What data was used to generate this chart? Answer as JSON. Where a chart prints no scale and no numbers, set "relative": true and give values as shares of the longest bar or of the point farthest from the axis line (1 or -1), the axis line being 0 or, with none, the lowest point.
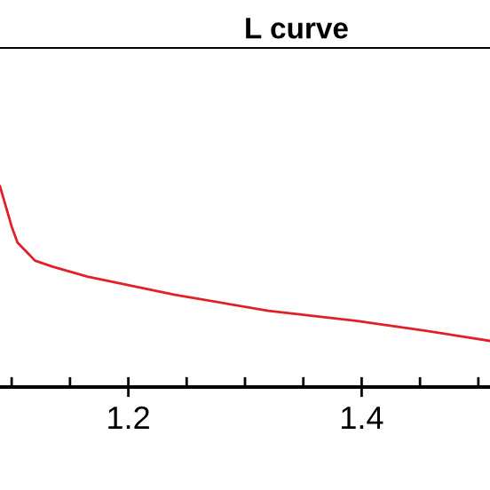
{
  "chart_data": {
    "type": "line",
    "title": "L curve",
    "relative": true,
    "xlim": [
      1.09,
      1.51
    ],
    "xticks": [
      {
        "value": 1.1,
        "label": null
      },
      {
        "value": 1.15,
        "label": null
      },
      1.2,
      {
        "value": 1.25,
        "label": null
      },
      {
        "value": 1.3,
        "label": null
      },
      {
        "value": 1.35,
        "label": null
      },
      1.4,
      {
        "value": 1.45,
        "label": null
      },
      {
        "value": 1.5,
        "label": null
      }
    ],
    "tick_labels": "x",
    "grid": false,
    "legend": false,
    "series": [
      {
        "color": "#e0202a",
        "x": [
          1.09,
          1.1,
          1.105,
          1.115,
          1.12,
          1.135,
          1.165,
          1.24,
          1.32,
          1.395,
          1.455,
          1.51
        ],
        "values": [
          1.0,
          0.8,
          0.72,
          0.66,
          0.63,
          0.6,
          0.55,
          0.46,
          0.38,
          0.33,
          0.28,
          0.23
        ]
      }
    ]
  }
}
